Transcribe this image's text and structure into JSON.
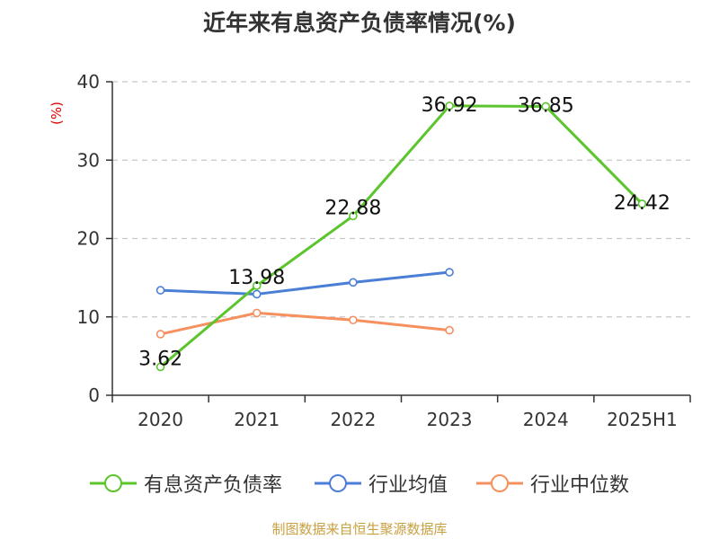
{
  "chart_data": {
    "type": "line",
    "title": "近年来有息资产负债率情况(%)",
    "ylabel": "(%)",
    "xlabel": "",
    "categories": [
      "2020",
      "2021",
      "2022",
      "2023",
      "2024",
      "2025H1"
    ],
    "ylim": [
      0,
      40
    ],
    "yticks": [
      0,
      10,
      20,
      30,
      40
    ],
    "grid": true,
    "legend_position": "bottom",
    "series": [
      {
        "name": "有息资产负债率",
        "color": "#5cc42d",
        "values": [
          3.62,
          13.98,
          22.88,
          36.92,
          36.85,
          24.42
        ],
        "labels": [
          "3.62",
          "13.98",
          "22.88",
          "36.92",
          "36.85",
          "24.42"
        ]
      },
      {
        "name": "行业均值",
        "color": "#4b7fd6",
        "values": [
          13.4,
          12.9,
          14.4,
          15.7,
          null,
          null
        ]
      },
      {
        "name": "行业中位数",
        "color": "#f6905f",
        "values": [
          7.8,
          10.5,
          9.6,
          8.3,
          null,
          null
        ]
      }
    ],
    "source": "制图数据来自恒生聚源数据库"
  }
}
